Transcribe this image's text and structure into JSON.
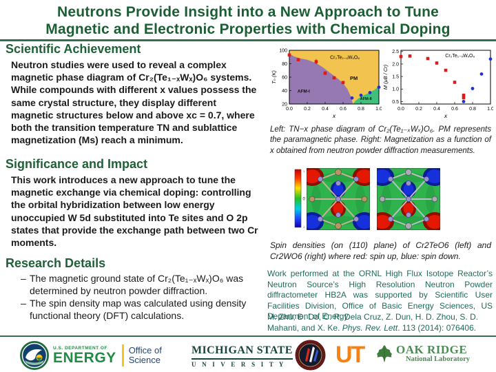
{
  "title": {
    "line1": "Neutrons Provide Insight into a New Approach to Tune",
    "line2": "Magnetic and Electronic Properties with Chemical Doping"
  },
  "sections": {
    "achievement": {
      "heading": "Scientific Achievement",
      "body": "Neutron studies were used to reveal a complex magnetic phase diagram of Cr₂(Te₁₋ₓWₓ)O₆ systems. While compounds with different x values possess the same crystal structure, they display different magnetic structures below and above xc = 0.7, where both the transition temperature TN and sublattice magnetization (Ms) reach a minimum."
    },
    "significance": {
      "heading": "Significance and Impact",
      "body": "This work introduces a new approach to tune the magnetic exchange via chemical doping: controlling the orbital hybridization between low energy unoccupied W 5d substituted into Te sites and O 2p states that provide the exchange path between two Cr moments."
    },
    "research": {
      "heading": "Research Details",
      "bullets": [
        "The magnetic ground state of Cr₂(Te₁₋ₓWₓ)O₆ was determined by neutron powder diffraction.",
        "The spin density map was calculated using density functional theory (DFT) calculations."
      ]
    }
  },
  "figures": {
    "caption_phase": "Left: TN−x phase diagram of Cr₂(Te₁₋ₓWₓ)O₆. PM represents the paramagnetic phase. Right: Magnetization as a function of x obtained from neutron powder diffraction measurements.",
    "caption_spin": "Spin densities (on (110) plane) of Cr2TeO6 (left) and Cr2WO6 (right) where red: spin up, blue: spin down.",
    "colorbar_ticks": [
      "↑",
      "0",
      "↓"
    ]
  },
  "right_notes": {
    "work": "Work performed at the ORNL High Flux Isotope Reactor’s Neutron Source’s High Resolution Neutron Powder diffractometer HB2A was supported by Scientific User Facilities Division, Office of Basic Energy Sciences, US Department of Energy.",
    "citation_pre": "M. Zhu, D. Do, C. R. Dela Cruz, Z. Dun, H. D. Zhou, S. D. Mahanti, and X. Ke. ",
    "citation_journal": "Phys. Rev. Lett",
    "citation_post": ". 113 (2014): 076406."
  },
  "footer": {
    "doe": {
      "dept": "U.S. DEPARTMENT OF",
      "energy": "ENERGY",
      "office": "Office of",
      "science": "Science"
    },
    "msu": {
      "line1": "MICHIGAN STATE",
      "line2": "U N I V E R S I T Y"
    },
    "ut_label": "UT",
    "ornl": {
      "line1": "OAK RIDGE",
      "line2": "National Laboratory"
    }
  },
  "colors": {
    "title_green": "#1B5E33",
    "heading_green": "#1F6038",
    "rule_green": "#336F4E",
    "note_green": "#1E6B5B",
    "phase_pm_yellow": "#F2C44F",
    "phase_afm1_purple": "#9678B2",
    "phase_afm2_green": "#3FC07D",
    "marker_red": "#DE1B1B",
    "marker_blue": "#2233CC"
  },
  "chart_data": [
    {
      "id": "phase",
      "type": "scatter",
      "title": "Cr₂Te₁₋ₓWₓO₆",
      "xlabel": "x",
      "ylabel": "Tₙ (K)",
      "xlim": [
        0,
        1
      ],
      "ylim": [
        20,
        100
      ],
      "xticks": [
        0,
        0.2,
        0.4,
        0.6,
        0.8,
        1
      ],
      "yticks": [
        20,
        40,
        60,
        80,
        100
      ],
      "ydec": 0,
      "grid": false,
      "legend": "none",
      "background": "#F2C44F",
      "regions": [
        {
          "name": "AFM-I",
          "color": "#9678B2",
          "points": [
            [
              0,
              20
            ],
            [
              0,
              95
            ],
            [
              0.05,
              91
            ],
            [
              0.12,
              88
            ],
            [
              0.2,
              86
            ],
            [
              0.3,
              81
            ],
            [
              0.38,
              74
            ],
            [
              0.46,
              66
            ],
            [
              0.54,
              58
            ],
            [
              0.6,
              51
            ],
            [
              0.65,
              42
            ],
            [
              0.69,
              30
            ],
            [
              0.71,
              20
            ]
          ]
        },
        {
          "name": "AFM-II",
          "color": "#3FC07D",
          "points": [
            [
              0.71,
              20
            ],
            [
              0.74,
              25
            ],
            [
              0.8,
              31
            ],
            [
              0.88,
              36
            ],
            [
              0.95,
              41
            ],
            [
              1,
              46
            ],
            [
              1,
              20
            ]
          ]
        }
      ],
      "region_labels": [
        {
          "text": "AFM-I",
          "x": 0.16,
          "y": 37,
          "size": 6.5
        },
        {
          "text": "PM",
          "x": 0.72,
          "y": 56,
          "size": 7.5
        },
        {
          "text": "AFM-II",
          "x": 0.855,
          "y": 26,
          "size": 5.6
        }
      ],
      "annotations": [
        {
          "text": "Cr₂Te₁₋ₓWₓO₆",
          "x": 0.62,
          "y": 87,
          "size": 7
        }
      ],
      "series": [
        {
          "name": "TN AFM-I (red squares)",
          "marker": "square",
          "color": "#DE1B1B",
          "points": [
            [
              0,
              93,
              2
            ],
            [
              0.1,
              86,
              2
            ],
            [
              0.3,
              83,
              4
            ],
            [
              0.4,
              66,
              3
            ],
            [
              0.5,
              59,
              2
            ],
            [
              0.6,
              52,
              2
            ]
          ]
        },
        {
          "name": "TN AFM-II (blue circles)",
          "marker": "circle",
          "color": "#2233CC",
          "points": [
            [
              0.7,
              29,
              2
            ],
            [
              0.8,
              33,
              2
            ],
            [
              0.9,
              37,
              2
            ],
            [
              1,
              45,
              2
            ]
          ]
        }
      ]
    },
    {
      "id": "mag",
      "type": "scatter",
      "title": "Cr₂Te₁₋ₓWₓO₆",
      "xlabel": "x",
      "ylabel": "M (μB / Cr)",
      "xlim": [
        0,
        1
      ],
      "ylim": [
        0.4,
        2.55
      ],
      "xticks": [
        0,
        0.2,
        0.4,
        0.6,
        0.8,
        1
      ],
      "yticks": [
        0.5,
        1,
        1.5,
        2,
        2.5
      ],
      "ydec": 1,
      "grid": false,
      "legend": "none",
      "background": "#FFFFFF",
      "annotations": [
        {
          "text": "Cr₂Te₁₋ₓWₓO₆",
          "x": 0.66,
          "y": 2.27,
          "size": 7
        }
      ],
      "series": [
        {
          "name": "M red squares",
          "marker": "square",
          "color": "#DE1B1B",
          "points": [
            [
              0,
              2.3
            ],
            [
              0.1,
              2.32
            ],
            [
              0.3,
              2.22
            ],
            [
              0.4,
              2.04
            ],
            [
              0.5,
              1.75
            ],
            [
              0.6,
              1.27
            ],
            [
              0.7,
              0.75,
              0.07
            ],
            [
              0.7,
              0.65,
              0.07
            ]
          ]
        },
        {
          "name": "M blue circles",
          "marker": "circle",
          "color": "#2233CC",
          "points": [
            [
              0.7,
              0.5
            ],
            [
              0.8,
              1.02
            ],
            [
              0.9,
              1.6
            ],
            [
              1,
              2.2
            ]
          ]
        }
      ]
    }
  ]
}
